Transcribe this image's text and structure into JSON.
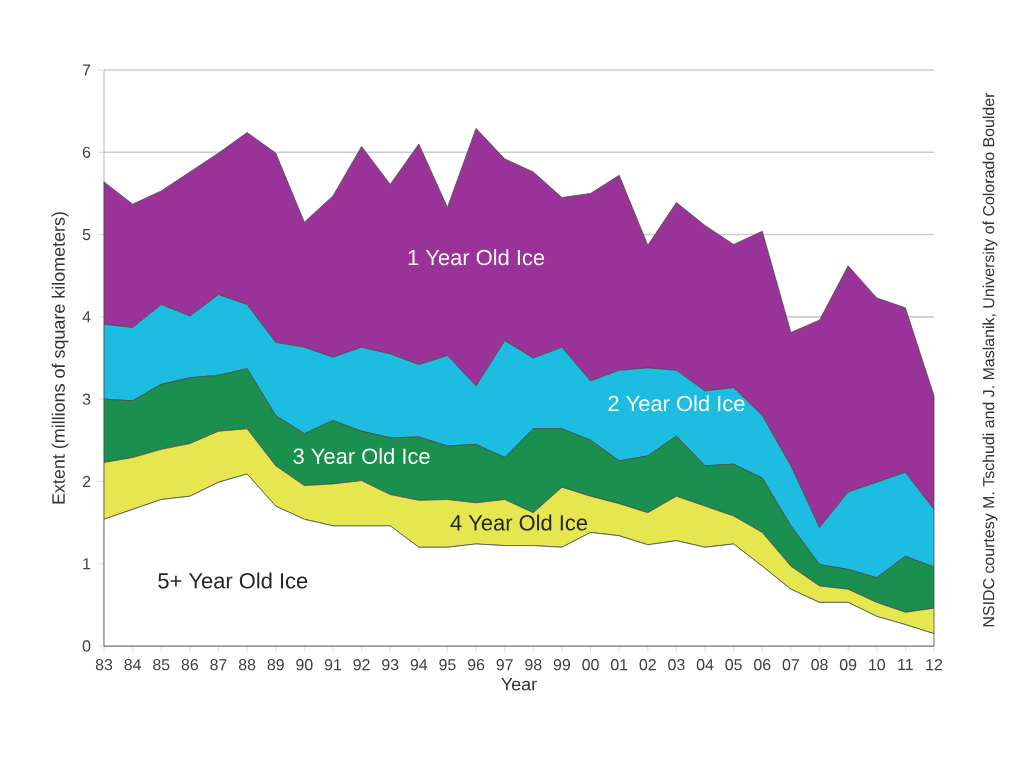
{
  "chart_data": {
    "type": "area",
    "stacked": true,
    "xlabel": "Year",
    "ylabel": "Extent (millions of square kilometers)",
    "categories": [
      "83",
      "84",
      "85",
      "86",
      "87",
      "88",
      "89",
      "90",
      "91",
      "92",
      "93",
      "94",
      "95",
      "96",
      "97",
      "98",
      "99",
      "00",
      "01",
      "02",
      "03",
      "04",
      "05",
      "06",
      "07",
      "08",
      "09",
      "10",
      "11",
      "12"
    ],
    "series": [
      {
        "name": "5+ Year Old Ice",
        "color": "#ffffff",
        "values": [
          1.54,
          1.66,
          1.78,
          1.82,
          1.99,
          2.09,
          1.7,
          1.54,
          1.46,
          1.46,
          1.46,
          1.2,
          1.2,
          1.24,
          1.22,
          1.22,
          1.2,
          1.38,
          1.34,
          1.23,
          1.28,
          1.2,
          1.24,
          0.97,
          0.69,
          0.53,
          0.53,
          0.36,
          0.26,
          0.15
        ]
      },
      {
        "name": "4 Year Old Ice",
        "color": "#e6e64e",
        "values": [
          0.69,
          0.63,
          0.61,
          0.64,
          0.62,
          0.55,
          0.49,
          0.41,
          0.51,
          0.55,
          0.38,
          0.57,
          0.58,
          0.5,
          0.56,
          0.4,
          0.73,
          0.44,
          0.39,
          0.39,
          0.54,
          0.5,
          0.34,
          0.41,
          0.28,
          0.2,
          0.16,
          0.17,
          0.15,
          0.31
        ]
      },
      {
        "name": "3 Year Old Ice",
        "color": "#1a8f4e",
        "values": [
          0.77,
          0.69,
          0.79,
          0.8,
          0.68,
          0.73,
          0.61,
          0.63,
          0.77,
          0.6,
          0.69,
          0.77,
          0.65,
          0.71,
          0.51,
          1.02,
          0.71,
          0.68,
          0.52,
          0.69,
          0.73,
          0.49,
          0.63,
          0.66,
          0.49,
          0.26,
          0.24,
          0.3,
          0.68,
          0.5
        ]
      },
      {
        "name": "2 Year Old Ice",
        "color": "#1cbde0",
        "values": [
          0.91,
          0.89,
          0.97,
          0.75,
          0.98,
          0.78,
          0.89,
          1.05,
          0.77,
          1.02,
          1.02,
          0.88,
          1.1,
          0.71,
          1.42,
          0.86,
          0.99,
          0.72,
          1.1,
          1.07,
          0.8,
          0.91,
          0.93,
          0.76,
          0.73,
          0.45,
          0.94,
          1.16,
          1.02,
          0.7
        ]
      },
      {
        "name": "1 Year Old Ice",
        "color": "#993399",
        "values": [
          1.73,
          1.5,
          1.38,
          1.75,
          1.72,
          2.09,
          2.3,
          1.52,
          1.96,
          2.44,
          2.06,
          2.68,
          1.8,
          3.13,
          2.21,
          2.26,
          1.82,
          2.28,
          2.37,
          1.49,
          2.04,
          2.01,
          1.74,
          2.24,
          1.62,
          2.52,
          2.75,
          2.24,
          2.0,
          1.38
        ]
      }
    ],
    "ylim": [
      0,
      7
    ],
    "yticks": [
      0,
      1,
      2,
      3,
      4,
      5,
      6,
      7
    ],
    "grid": "y",
    "legend": false,
    "annotations": [
      "NSIDC courtesy M. Tschudi and J. Maslanik, University of Colorado Boulder"
    ]
  }
}
